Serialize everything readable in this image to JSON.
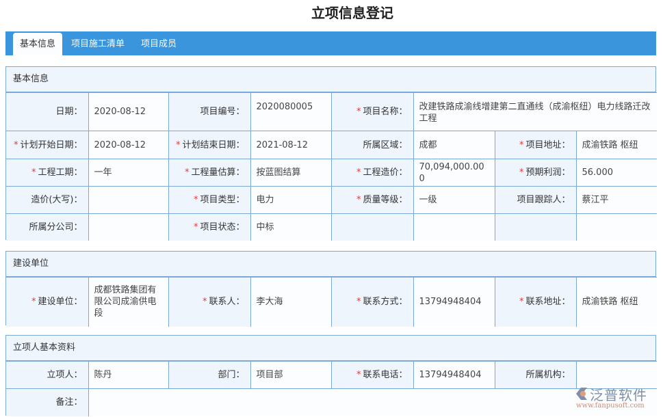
{
  "page_title": "立项信息登记",
  "tabs": [
    {
      "label": "基本信息",
      "active": true
    },
    {
      "label": "项目施工清单",
      "active": false
    },
    {
      "label": "项目成员",
      "active": false
    }
  ],
  "sections": [
    {
      "title": "基本信息",
      "rows": [
        [
          {
            "label": "日期：",
            "required": false
          },
          {
            "value": "2020-08-12"
          },
          {
            "label": "项目编号：",
            "required": false
          },
          {
            "value": "2020080005",
            "top": true
          },
          {
            "label": "项目名称：",
            "required": true
          },
          {
            "value": "改建铁路成渝线增建第二直通线（成渝枢纽）电力线路迁改工程",
            "colspan": 3,
            "top": true
          }
        ],
        [
          {
            "label": "计划开始日期：",
            "required": true
          },
          {
            "value": "2020-08-12"
          },
          {
            "label": "计划结束日期：",
            "required": true
          },
          {
            "value": "2021-08-12"
          },
          {
            "label": "所属区域：",
            "required": false
          },
          {
            "value": "成都"
          },
          {
            "label": "项目地址：",
            "required": true
          },
          {
            "value": "成渝铁路 枢纽"
          }
        ],
        [
          {
            "label": "工程工期：",
            "required": true
          },
          {
            "value": "一年"
          },
          {
            "label": "工程量估算：",
            "required": true
          },
          {
            "value": "按蓝图结算"
          },
          {
            "label": "工程造价：",
            "required": true
          },
          {
            "value": "70,094,000.000"
          },
          {
            "label": "预期利润：",
            "required": true
          },
          {
            "value": "56.000"
          }
        ],
        [
          {
            "label": "造价(大写)：",
            "required": false
          },
          {
            "value": ""
          },
          {
            "label": "项目类型：",
            "required": true
          },
          {
            "value": "电力"
          },
          {
            "label": "质量等级：",
            "required": true
          },
          {
            "value": "一级"
          },
          {
            "label": "项目跟踪人：",
            "required": false
          },
          {
            "value": "蔡江平"
          }
        ],
        [
          {
            "label": "所属分公司：",
            "required": false
          },
          {
            "value": ""
          },
          {
            "label": "项目状态：",
            "required": true
          },
          {
            "value": "中标"
          },
          {
            "label": "",
            "required": false
          },
          {
            "value": ""
          },
          {
            "label": "",
            "required": false
          },
          {
            "value": ""
          }
        ]
      ]
    },
    {
      "title": "建设单位",
      "rows": [
        [
          {
            "label": "建设单位：",
            "required": true
          },
          {
            "value": "成都铁路集团有限公司成渝供电段"
          },
          {
            "label": "联系人：",
            "required": true
          },
          {
            "value": "李大海"
          },
          {
            "label": "联系方式：",
            "required": true
          },
          {
            "value": "13794948404"
          },
          {
            "label": "联系地址：",
            "required": true
          },
          {
            "value": "成渝铁路 枢纽"
          }
        ]
      ]
    },
    {
      "title": "立项人基本资料",
      "rows": [
        [
          {
            "label": "立项人：",
            "required": false
          },
          {
            "value": "陈丹"
          },
          {
            "label": "部门：",
            "required": false
          },
          {
            "value": "项目部"
          },
          {
            "label": "联系电话：",
            "required": true
          },
          {
            "value": "13794948404"
          },
          {
            "label": "所属机构：",
            "required": false
          },
          {
            "value": ""
          }
        ],
        [
          {
            "label": "备注：",
            "required": false
          },
          {
            "value": "",
            "colspan": 7
          }
        ]
      ]
    }
  ],
  "watermark": {
    "brand": "泛普软件",
    "url": "www.fanpusoft.com"
  },
  "colors": {
    "tab_bar": "#3a95dc",
    "border": "#7aa9d8",
    "label_bg": "#eef5fd",
    "required": "#e53935"
  }
}
